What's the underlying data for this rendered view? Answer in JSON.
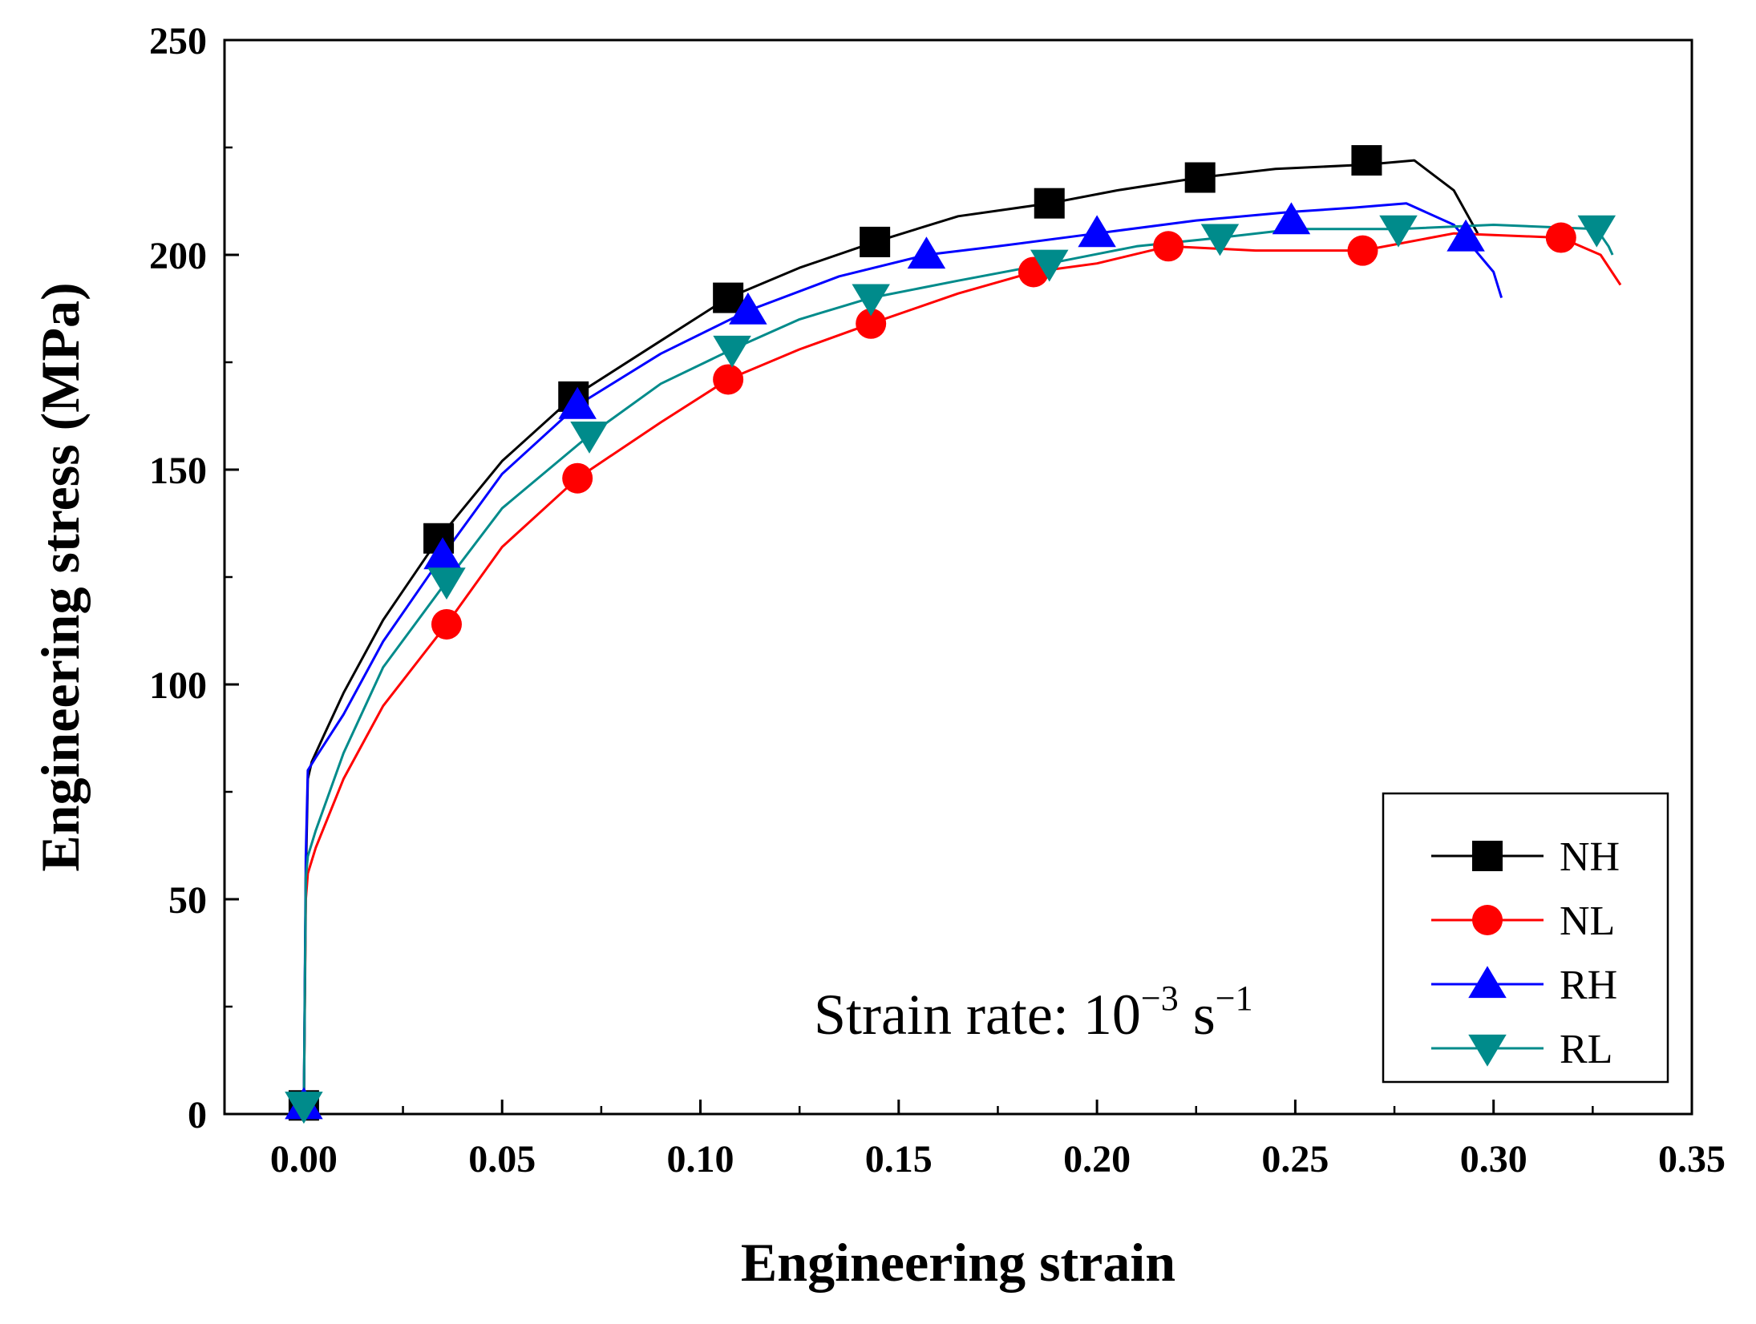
{
  "chart_data": {
    "type": "line",
    "title": "",
    "xlabel": "Engineering strain",
    "ylabel": "Engineering stress (MPa)",
    "xlim": [
      -0.02,
      0.35
    ],
    "ylim": [
      0,
      250
    ],
    "x_ticks": [
      0.0,
      0.05,
      0.1,
      0.15,
      0.2,
      0.25,
      0.3,
      0.35
    ],
    "x_tick_labels": [
      "0.00",
      "0.05",
      "0.10",
      "0.15",
      "0.20",
      "0.25",
      "0.30",
      "0.35"
    ],
    "y_ticks": [
      0,
      50,
      100,
      150,
      200,
      250
    ],
    "y_tick_labels": [
      "0",
      "50",
      "100",
      "150",
      "200",
      "250"
    ],
    "grid": false,
    "legend_position": "bottom-right",
    "annotation": {
      "text": "Strain rate: 10",
      "exp1": "−3",
      "unit": " s",
      "exp2": "−1"
    },
    "series": [
      {
        "name": "NH",
        "color": "#000000",
        "marker": "square",
        "x": [
          0,
          0.0005,
          0.001,
          0.002,
          0.005,
          0.01,
          0.02,
          0.034,
          0.05,
          0.068,
          0.09,
          0.107,
          0.125,
          0.144,
          0.165,
          0.188,
          0.205,
          0.226,
          0.245,
          0.268,
          0.28,
          0.29,
          0.296
        ],
        "y": [
          0,
          55,
          78,
          82,
          88,
          98,
          115,
          134,
          152,
          167,
          180,
          190,
          197,
          203,
          209,
          212,
          215,
          218,
          220,
          221,
          222,
          215,
          205
        ],
        "marker_x": [
          0,
          0.034,
          0.068,
          0.107,
          0.144,
          0.188,
          0.226,
          0.268
        ],
        "marker_y": [
          2,
          134,
          167,
          190,
          203,
          212,
          218,
          222
        ]
      },
      {
        "name": "NL",
        "color": "#ff0000",
        "marker": "circle",
        "x": [
          0,
          0.0005,
          0.001,
          0.003,
          0.01,
          0.02,
          0.036,
          0.05,
          0.069,
          0.09,
          0.107,
          0.125,
          0.143,
          0.165,
          0.184,
          0.2,
          0.218,
          0.24,
          0.267,
          0.29,
          0.317,
          0.327,
          0.332
        ],
        "y": [
          0,
          50,
          56,
          62,
          78,
          95,
          114,
          132,
          148,
          161,
          171,
          178,
          184,
          191,
          196,
          198,
          202,
          201,
          201,
          205,
          204,
          200,
          193
        ],
        "marker_x": [
          0.036,
          0.069,
          0.107,
          0.143,
          0.184,
          0.218,
          0.267,
          0.317
        ],
        "marker_y": [
          114,
          148,
          171,
          184,
          196,
          202,
          201,
          204
        ]
      },
      {
        "name": "RH",
        "color": "#0000ff",
        "marker": "triangle-up",
        "x": [
          0,
          0.0005,
          0.001,
          0.003,
          0.01,
          0.02,
          0.035,
          0.05,
          0.069,
          0.09,
          0.112,
          0.135,
          0.157,
          0.175,
          0.2,
          0.225,
          0.249,
          0.265,
          0.278,
          0.29,
          0.3,
          0.302
        ],
        "y": [
          0,
          60,
          80,
          83,
          93,
          110,
          130,
          149,
          165,
          177,
          187,
          195,
          200,
          202,
          205,
          208,
          210,
          211,
          212,
          207,
          196,
          190
        ],
        "marker_x": [
          0,
          0.035,
          0.069,
          0.112,
          0.157,
          0.2,
          0.249,
          0.293
        ],
        "marker_y": [
          2,
          130,
          165,
          187,
          200,
          205,
          208,
          204
        ]
      },
      {
        "name": "RL",
        "color": "#008b8b",
        "marker": "triangle-down",
        "x": [
          0,
          0.0005,
          0.001,
          0.003,
          0.01,
          0.02,
          0.036,
          0.05,
          0.072,
          0.09,
          0.108,
          0.125,
          0.143,
          0.165,
          0.188,
          0.21,
          0.231,
          0.25,
          0.276,
          0.3,
          0.326,
          0.329,
          0.33
        ],
        "y": [
          0,
          55,
          60,
          66,
          84,
          104,
          124,
          141,
          158,
          170,
          178,
          185,
          190,
          194,
          198,
          202,
          204,
          206,
          206,
          207,
          206,
          202,
          200
        ],
        "marker_x": [
          0,
          0.036,
          0.072,
          0.108,
          0.143,
          0.188,
          0.231,
          0.276,
          0.326
        ],
        "marker_y": [
          2,
          124,
          158,
          178,
          190,
          198,
          204,
          206,
          206
        ]
      }
    ]
  }
}
